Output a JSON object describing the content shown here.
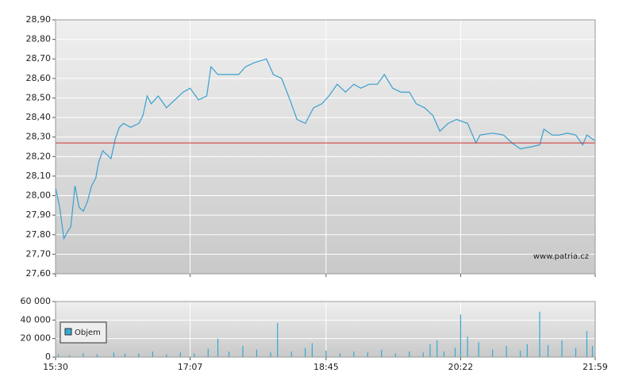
{
  "chart_data": [
    {
      "type": "line",
      "watermark": "www.patria.cz",
      "color": "#3a9fd0",
      "reference_line": 28.27,
      "reference_color": "#d03030",
      "x": [
        "15:30",
        "15:33",
        "15:36",
        "15:39",
        "15:41",
        "15:44",
        "15:47",
        "15:50",
        "15:53",
        "15:56",
        "15:59",
        "16:01",
        "16:04",
        "16:10",
        "16:13",
        "16:16",
        "16:19",
        "16:24",
        "16:30",
        "16:33",
        "16:36",
        "16:39",
        "16:44",
        "16:50",
        "16:56",
        "17:02",
        "17:07",
        "17:13",
        "17:19",
        "17:22",
        "17:27",
        "17:36",
        "17:42",
        "17:47",
        "17:53",
        "18:02",
        "18:07",
        "18:13",
        "18:19",
        "18:24",
        "18:30",
        "18:36",
        "18:42",
        "18:47",
        "18:53",
        "18:59",
        "19:05",
        "19:10",
        "19:16",
        "19:22",
        "19:27",
        "19:33",
        "19:39",
        "19:45",
        "19:50",
        "19:56",
        "20:02",
        "20:07",
        "20:13",
        "20:19",
        "20:27",
        "20:33",
        "20:36",
        "20:45",
        "20:53",
        "20:59",
        "21:05",
        "21:13",
        "21:19",
        "21:22",
        "21:28",
        "21:33",
        "21:39",
        "21:45",
        "21:50",
        "21:53",
        "21:59"
      ],
      "values": [
        28.04,
        27.94,
        27.78,
        27.82,
        27.84,
        28.05,
        27.94,
        27.92,
        27.97,
        28.05,
        28.09,
        28.17,
        28.23,
        28.19,
        28.29,
        28.35,
        28.37,
        28.35,
        28.37,
        28.41,
        28.51,
        28.47,
        28.51,
        28.45,
        28.49,
        28.53,
        28.55,
        28.49,
        28.51,
        28.66,
        28.62,
        28.62,
        28.62,
        28.66,
        28.68,
        28.7,
        28.62,
        28.6,
        28.49,
        28.39,
        28.37,
        28.45,
        28.47,
        28.51,
        28.57,
        28.53,
        28.57,
        28.55,
        28.57,
        28.57,
        28.62,
        28.55,
        28.53,
        28.53,
        28.47,
        28.45,
        28.41,
        28.33,
        28.37,
        28.39,
        28.37,
        28.27,
        28.31,
        28.32,
        28.31,
        28.27,
        28.24,
        28.25,
        28.26,
        28.34,
        28.31,
        28.31,
        28.32,
        28.31,
        28.26,
        28.31,
        28.28
      ],
      "xlim": [
        "15:30",
        "21:59"
      ],
      "ylim": [
        27.6,
        28.9
      ],
      "yticks": [
        {
          "value": 27.6,
          "label": "27,60"
        },
        {
          "value": 27.7,
          "label": "27,70"
        },
        {
          "value": 27.8,
          "label": "27,80"
        },
        {
          "value": 27.9,
          "label": "27,90"
        },
        {
          "value": 28.0,
          "label": "28,00"
        },
        {
          "value": 28.1,
          "label": "28,10"
        },
        {
          "value": 28.2,
          "label": "28,20"
        },
        {
          "value": 28.3,
          "label": "28,30"
        },
        {
          "value": 28.4,
          "label": "28,40"
        },
        {
          "value": 28.5,
          "label": "28,50"
        },
        {
          "value": 28.6,
          "label": "28,60"
        },
        {
          "value": 28.7,
          "label": "28,70"
        },
        {
          "value": 28.8,
          "label": "28,80"
        },
        {
          "value": 28.9,
          "label": "28,90"
        }
      ],
      "grid": true
    },
    {
      "type": "bar",
      "legend": "Objem",
      "color": "#33aad0",
      "x": [
        "15:32",
        "15:40",
        "15:50",
        "16:00",
        "16:12",
        "16:20",
        "16:30",
        "16:40",
        "16:50",
        "17:00",
        "17:10",
        "17:20",
        "17:27",
        "17:35",
        "17:45",
        "17:55",
        "18:05",
        "18:10",
        "18:20",
        "18:30",
        "18:35",
        "18:45",
        "18:55",
        "19:05",
        "19:15",
        "19:25",
        "19:35",
        "19:45",
        "19:55",
        "20:00",
        "20:05",
        "20:10",
        "20:18",
        "20:22",
        "20:27",
        "20:35",
        "20:45",
        "20:55",
        "21:05",
        "21:10",
        "21:19",
        "21:25",
        "21:35",
        "21:45",
        "21:53",
        "21:57"
      ],
      "values": [
        3000,
        2000,
        4000,
        3000,
        5000,
        3500,
        4000,
        6000,
        3000,
        5000,
        4000,
        9000,
        20000,
        6000,
        12000,
        8000,
        5000,
        37000,
        6000,
        10000,
        15000,
        7000,
        4000,
        6000,
        5000,
        8000,
        4000,
        6000,
        5000,
        14000,
        18000,
        6000,
        10000,
        46000,
        22000,
        16000,
        8000,
        12000,
        7000,
        14000,
        49000,
        13000,
        18000,
        10000,
        28000,
        12000
      ],
      "xlim": [
        "15:30",
        "21:59"
      ],
      "xticks": [
        "15:30",
        "17:07",
        "18:45",
        "20:22",
        "21:59"
      ],
      "ylim": [
        0,
        60000
      ],
      "yticks": [
        {
          "value": 0,
          "label": "0"
        },
        {
          "value": 20000,
          "label": "20 000"
        },
        {
          "value": 40000,
          "label": "40 000"
        },
        {
          "value": 60000,
          "label": "60 000"
        }
      ],
      "grid": true
    }
  ]
}
